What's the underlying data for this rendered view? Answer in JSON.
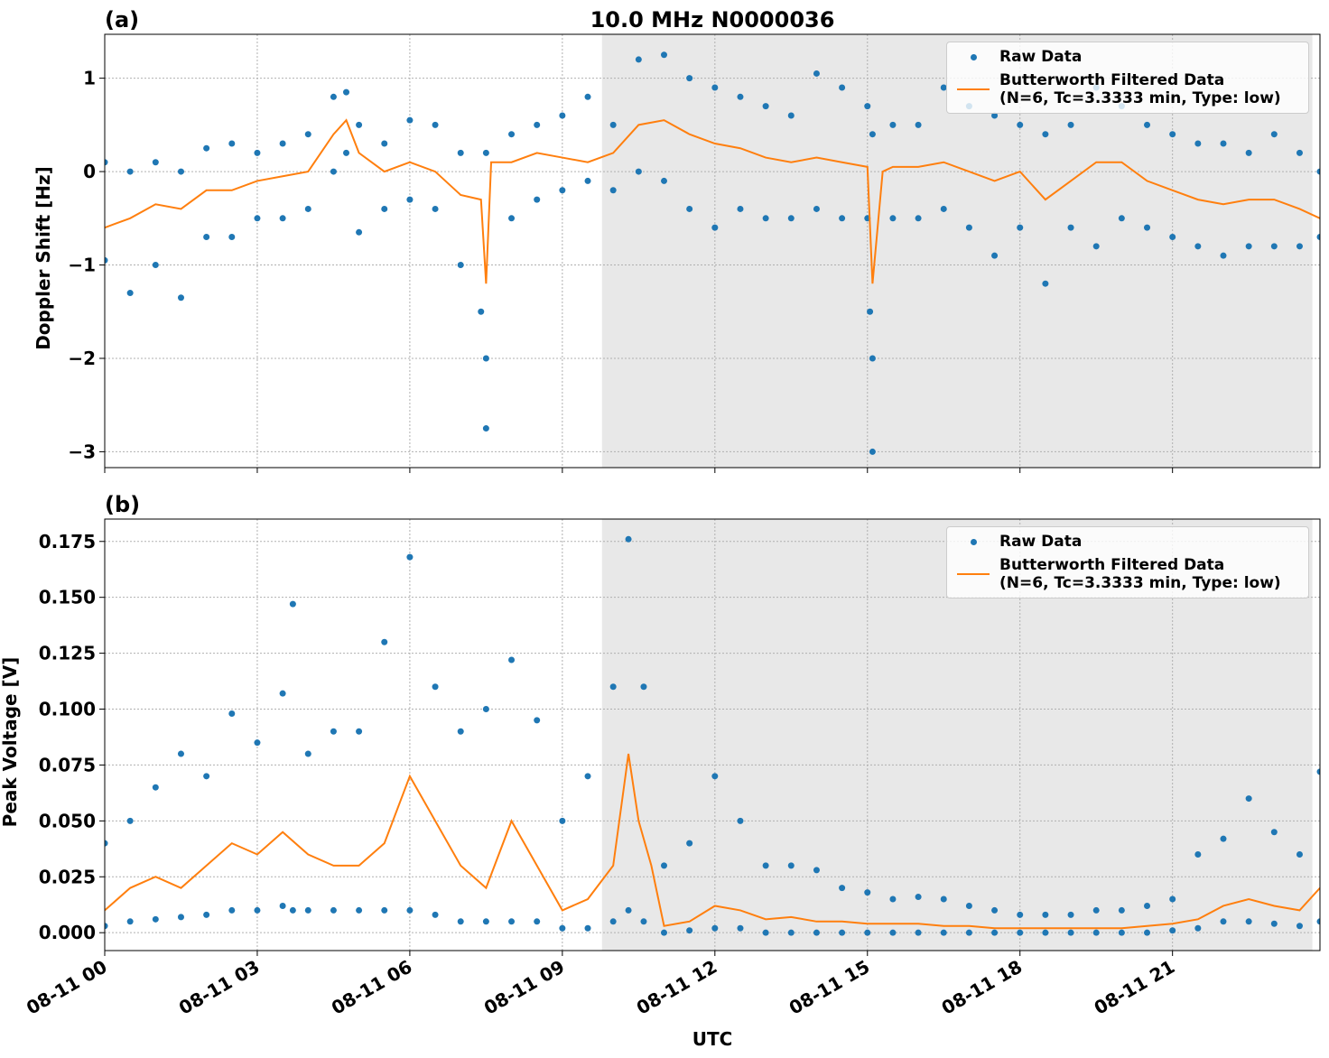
{
  "chart_data": [
    {
      "type": "scatter",
      "title": "10.0 MHz N0000036",
      "panel_label": "(a)",
      "ylabel": "Doppler Shift [Hz]",
      "xlim": [
        0,
        23.9
      ],
      "xticks": [
        0,
        3,
        6,
        9,
        12,
        15,
        18,
        21
      ],
      "ylim": [
        -3.17,
        1.47
      ],
      "yticks": [
        {
          "value": -3,
          "label": "−3"
        },
        {
          "value": -2,
          "label": "−2"
        },
        {
          "value": -1,
          "label": "−1"
        },
        0,
        1
      ],
      "grid": true,
      "shade": [
        9.78,
        23.75
      ],
      "shade_color": "#e8e8e8",
      "legend": "upper right",
      "series": [
        {
          "name": "Raw Data",
          "style": "marker",
          "color": "#1f77b4",
          "x": [
            0,
            0,
            0.5,
            0.5,
            1,
            1,
            1.5,
            1.5,
            2,
            2,
            2.5,
            2.5,
            3,
            3,
            3.5,
            3.5,
            4,
            4,
            4.5,
            4.5,
            4.75,
            4.75,
            5,
            5,
            5.5,
            5.5,
            6,
            6,
            6.5,
            6.5,
            7,
            7,
            7.5,
            7.5,
            8,
            8,
            8.5,
            8.5,
            9,
            9,
            9.5,
            9.5,
            10,
            10,
            10.5,
            10.5,
            11,
            11,
            11.5,
            11.5,
            12,
            12,
            12.5,
            12.5,
            13,
            13,
            13.5,
            13.5,
            14,
            14,
            14.5,
            14.5,
            15,
            15,
            15.1,
            15.1,
            15.5,
            15.5,
            16,
            16,
            16.5,
            16.5,
            17,
            17,
            17.5,
            17.5,
            18,
            18,
            18.5,
            18.5,
            19,
            19,
            19.5,
            19.5,
            20,
            20,
            20.5,
            20.5,
            21,
            21,
            21.5,
            21.5,
            22,
            22,
            22.5,
            22.5,
            23,
            23,
            23.5,
            23.5,
            23.9,
            23.9,
            7.5,
            7.4,
            15.1,
            15.05
          ],
          "values": [
            0.1,
            -0.95,
            0.0,
            -1.3,
            0.1,
            -1.0,
            0.0,
            -1.35,
            0.25,
            -0.7,
            0.3,
            -0.7,
            0.2,
            -0.5,
            0.3,
            -0.5,
            0.4,
            -0.4,
            0.8,
            0.0,
            0.85,
            0.2,
            0.5,
            -0.65,
            0.3,
            -0.4,
            0.55,
            -0.3,
            0.5,
            -0.4,
            0.2,
            -1.0,
            0.2,
            -2.75,
            0.4,
            -0.5,
            0.5,
            -0.3,
            0.6,
            -0.2,
            0.8,
            -0.1,
            0.5,
            -0.2,
            1.2,
            0.0,
            1.25,
            -0.1,
            1.0,
            -0.4,
            0.9,
            -0.6,
            0.8,
            -0.4,
            0.7,
            -0.5,
            0.6,
            -0.5,
            1.05,
            -0.4,
            0.9,
            -0.5,
            0.7,
            -0.5,
            0.4,
            -3.0,
            0.5,
            -0.5,
            0.5,
            -0.5,
            0.9,
            -0.4,
            0.7,
            -0.6,
            0.6,
            -0.9,
            0.5,
            -0.6,
            0.4,
            -1.2,
            0.5,
            -0.6,
            0.9,
            -0.8,
            0.7,
            -0.5,
            0.5,
            -0.6,
            0.4,
            -0.7,
            0.3,
            -0.8,
            0.3,
            -0.9,
            0.2,
            -0.8,
            0.4,
            -0.8,
            0.2,
            -0.8,
            0.0,
            -0.7,
            -2.0,
            -1.5,
            -2.0,
            -1.5
          ]
        },
        {
          "name": "Butterworth Filtered Data\n(N=6, Tc=3.3333 min, Type: low)",
          "style": "line",
          "color": "#ff7f0e",
          "x": [
            0,
            0.5,
            1,
            1.5,
            2,
            2.5,
            3,
            3.5,
            4,
            4.5,
            4.75,
            5,
            5.5,
            6,
            6.5,
            7,
            7.4,
            7.5,
            7.6,
            8,
            8.5,
            9,
            9.5,
            10,
            10.5,
            11,
            11.5,
            12,
            12.5,
            13,
            13.5,
            14,
            14.5,
            15,
            15.1,
            15.3,
            15.5,
            16,
            16.5,
            17,
            17.5,
            18,
            18.5,
            19,
            19.5,
            20,
            20.5,
            21,
            21.5,
            22,
            22.5,
            23,
            23.5,
            23.9
          ],
          "values": [
            -0.6,
            -0.5,
            -0.35,
            -0.4,
            -0.2,
            -0.2,
            -0.1,
            -0.05,
            0.0,
            0.4,
            0.55,
            0.2,
            0.0,
            0.1,
            0.0,
            -0.25,
            -0.3,
            -1.2,
            0.1,
            0.1,
            0.2,
            0.15,
            0.1,
            0.2,
            0.5,
            0.55,
            0.4,
            0.3,
            0.25,
            0.15,
            0.1,
            0.15,
            0.1,
            0.05,
            -1.2,
            0.0,
            0.05,
            0.05,
            0.1,
            0.0,
            -0.1,
            0.0,
            -0.3,
            -0.1,
            0.1,
            0.1,
            -0.1,
            -0.2,
            -0.3,
            -0.35,
            -0.3,
            -0.3,
            -0.4,
            -0.5
          ]
        }
      ]
    },
    {
      "type": "scatter",
      "panel_label": "(b)",
      "ylabel": "Peak Voltage [V]",
      "xlabel": "UTC",
      "xlim": [
        0,
        23.9
      ],
      "xticks": [
        {
          "value": 0,
          "label": "08-11 00"
        },
        {
          "value": 3,
          "label": "08-11 03"
        },
        {
          "value": 6,
          "label": "08-11 06"
        },
        {
          "value": 9,
          "label": "08-11 09"
        },
        {
          "value": 12,
          "label": "08-11 12"
        },
        {
          "value": 15,
          "label": "08-11 15"
        },
        {
          "value": 18,
          "label": "08-11 18"
        },
        {
          "value": 21,
          "label": "08-11 21"
        }
      ],
      "ylim": [
        -0.008,
        0.185
      ],
      "yticks": [
        {
          "value": 0,
          "label": "0.000"
        },
        0.025,
        {
          "value": 0.05,
          "label": "0.050"
        },
        0.075,
        {
          "value": 0.1,
          "label": "0.100"
        },
        0.125,
        {
          "value": 0.15,
          "label": "0.150"
        },
        0.175
      ],
      "grid": true,
      "shade": [
        9.78,
        23.75
      ],
      "shade_color": "#e8e8e8",
      "legend": "upper right",
      "series": [
        {
          "name": "Raw Data",
          "style": "marker",
          "color": "#1f77b4",
          "x": [
            0,
            0,
            0.5,
            0.5,
            1,
            1,
            1.5,
            1.5,
            2,
            2,
            2.5,
            2.5,
            3,
            3,
            3.5,
            3.5,
            3.7,
            3.7,
            4,
            4,
            4.5,
            4.5,
            5,
            5,
            5.5,
            5.5,
            6,
            6,
            6.5,
            6.5,
            7,
            7,
            7.5,
            7.5,
            8,
            8,
            8.5,
            8.5,
            9,
            9,
            9.5,
            9.5,
            10,
            10,
            10.3,
            10.3,
            10.6,
            10.6,
            11,
            11,
            11.5,
            11.5,
            12,
            12,
            12.5,
            12.5,
            13,
            13,
            13.5,
            13.5,
            14,
            14,
            14.5,
            14.5,
            15,
            15,
            15.5,
            15.5,
            16,
            16,
            16.5,
            16.5,
            17,
            17,
            17.5,
            17.5,
            18,
            18,
            18.5,
            18.5,
            19,
            19,
            19.5,
            19.5,
            20,
            20,
            20.5,
            20.5,
            21,
            21,
            21.5,
            21.5,
            22,
            22,
            22.5,
            22.5,
            23,
            23,
            23.5,
            23.5,
            23.9,
            23.9
          ],
          "values": [
            0.04,
            0.003,
            0.05,
            0.005,
            0.065,
            0.006,
            0.08,
            0.007,
            0.07,
            0.008,
            0.098,
            0.01,
            0.085,
            0.01,
            0.107,
            0.012,
            0.147,
            0.01,
            0.08,
            0.01,
            0.09,
            0.01,
            0.09,
            0.01,
            0.13,
            0.01,
            0.168,
            0.01,
            0.11,
            0.008,
            0.09,
            0.005,
            0.1,
            0.005,
            0.122,
            0.005,
            0.095,
            0.005,
            0.05,
            0.002,
            0.07,
            0.002,
            0.11,
            0.005,
            0.176,
            0.01,
            0.11,
            0.005,
            0.03,
            0.0,
            0.04,
            0.001,
            0.07,
            0.002,
            0.05,
            0.002,
            0.03,
            0.0,
            0.03,
            0.0,
            0.028,
            0.0,
            0.02,
            0.0,
            0.018,
            0.0,
            0.015,
            0.0,
            0.016,
            0.0,
            0.015,
            0.0,
            0.012,
            0.0,
            0.01,
            0.0,
            0.008,
            0.0,
            0.008,
            0.0,
            0.008,
            0.0,
            0.01,
            0.0,
            0.01,
            0.0,
            0.012,
            0.0,
            0.015,
            0.001,
            0.035,
            0.002,
            0.042,
            0.005,
            0.06,
            0.005,
            0.045,
            0.004,
            0.035,
            0.003,
            0.072,
            0.005
          ]
        },
        {
          "name": "Butterworth Filtered Data\n(N=6, Tc=3.3333 min, Type: low)",
          "style": "line",
          "color": "#ff7f0e",
          "x": [
            0,
            0.5,
            1,
            1.5,
            2,
            2.5,
            3,
            3.5,
            4,
            4.5,
            5,
            5.5,
            6,
            6.5,
            7,
            7.5,
            8,
            8.5,
            9,
            9.5,
            10,
            10.3,
            10.5,
            10.75,
            11,
            11.5,
            12,
            12.5,
            13,
            13.5,
            14,
            14.5,
            15,
            15.5,
            16,
            16.5,
            17,
            17.5,
            18,
            18.5,
            19,
            19.5,
            20,
            20.5,
            21,
            21.5,
            22,
            22.5,
            23,
            23.5,
            23.9
          ],
          "values": [
            0.01,
            0.02,
            0.025,
            0.02,
            0.03,
            0.04,
            0.035,
            0.045,
            0.035,
            0.03,
            0.03,
            0.04,
            0.07,
            0.05,
            0.03,
            0.02,
            0.05,
            0.03,
            0.01,
            0.015,
            0.03,
            0.08,
            0.05,
            0.03,
            0.003,
            0.005,
            0.012,
            0.01,
            0.006,
            0.007,
            0.005,
            0.005,
            0.004,
            0.004,
            0.004,
            0.003,
            0.003,
            0.002,
            0.002,
            0.002,
            0.002,
            0.002,
            0.002,
            0.003,
            0.004,
            0.006,
            0.012,
            0.015,
            0.012,
            0.01,
            0.02
          ]
        }
      ]
    }
  ]
}
